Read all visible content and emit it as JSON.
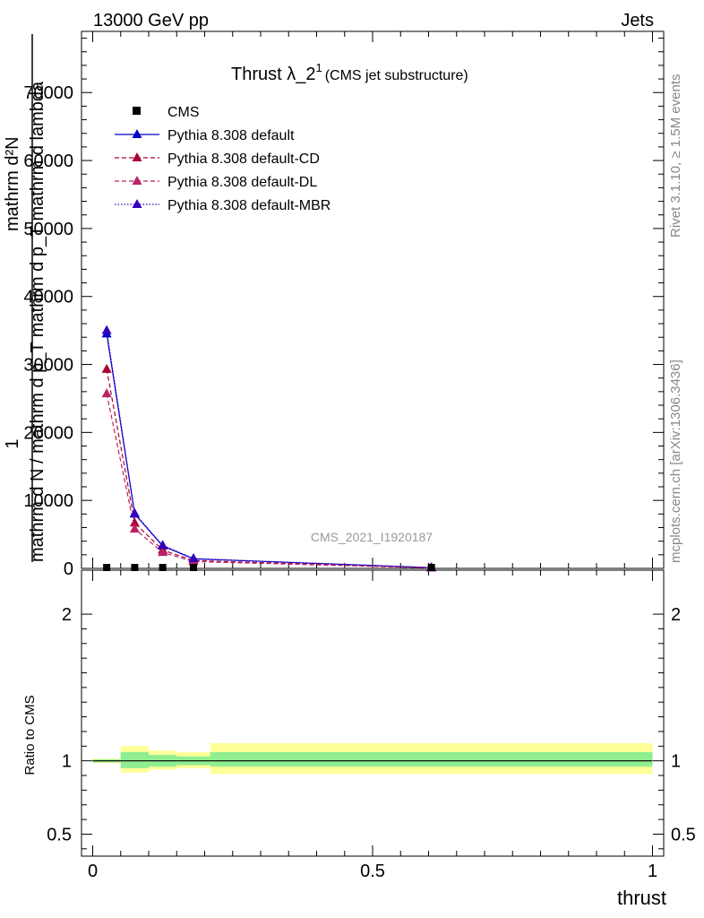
{
  "header": {
    "left": "13000 GeV pp",
    "right": "Jets"
  },
  "side_labels": {
    "rivet": "Rivet 3.1.10, ≥ 1.5M events",
    "mcplots": "mcplots.cern.ch [arXiv:1306.3436]"
  },
  "chart_data": {
    "type": "line",
    "title": "Thrust λ_2",
    "title_sup": "1",
    "subtitle": "(CMS jet substructure)",
    "watermark": "CMS_2021_I1920187",
    "xlabel": "thrust",
    "ylabel_num": "mathrm d²N",
    "ylabel_den": "mathrm d N / mathrm d p_T mathrm d p_T mathrm d lambda",
    "ylabel_lead": "1",
    "ratio_ylabel": "Ratio to CMS",
    "xlim": [
      -0.02,
      1.02
    ],
    "ylim": [
      0,
      79000
    ],
    "ratio_ylim": [
      0.35,
      2.3
    ],
    "x_ticks": [
      "0",
      "0.5",
      "1"
    ],
    "y_ticks": [
      "0",
      "10000",
      "20000",
      "30000",
      "40000",
      "50000",
      "60000",
      "70000"
    ],
    "ratio_ticks": [
      "0.5",
      "1",
      "2"
    ],
    "bins": [
      0.0,
      0.05,
      0.1,
      0.15,
      0.21,
      1.0
    ],
    "x": [
      0.025,
      0.075,
      0.125,
      0.18,
      0.605
    ],
    "series": [
      {
        "name": "CMS",
        "style": "data",
        "color": "#000000",
        "values": [
          0,
          0,
          0,
          0,
          0
        ]
      },
      {
        "name": "Pythia 8.308 default",
        "style": "solid",
        "color": "#0000cc",
        "values": [
          34500,
          8000,
          3300,
          1400,
          100
        ]
      },
      {
        "name": "Pythia 8.308 default-CD",
        "style": "dashed",
        "color": "#aa0033",
        "values": [
          29300,
          6700,
          2700,
          1150,
          80
        ]
      },
      {
        "name": "Pythia 8.308 default-DL",
        "style": "dashed",
        "color": "#bb2266",
        "values": [
          25700,
          5800,
          2350,
          1000,
          70
        ]
      },
      {
        "name": "Pythia 8.308 default-MBR",
        "style": "dotted",
        "color": "#3300bb",
        "values": [
          35000,
          8100,
          3400,
          1450,
          110
        ]
      }
    ],
    "ratio_bands": [
      {
        "x0": 0.0,
        "x1": 0.05,
        "inner": [
          0.99,
          1.01
        ],
        "outer": [
          0.985,
          1.015
        ]
      },
      {
        "x0": 0.05,
        "x1": 0.1,
        "inner": [
          0.95,
          1.06
        ],
        "outer": [
          0.92,
          1.1
        ]
      },
      {
        "x0": 0.1,
        "x1": 0.15,
        "inner": [
          0.96,
          1.04
        ],
        "outer": [
          0.94,
          1.07
        ]
      },
      {
        "x0": 0.15,
        "x1": 0.21,
        "inner": [
          0.97,
          1.03
        ],
        "outer": [
          0.95,
          1.06
        ]
      },
      {
        "x0": 0.21,
        "x1": 1.0,
        "inner": [
          0.96,
          1.06
        ],
        "outer": [
          0.91,
          1.12
        ]
      }
    ],
    "band_colors": {
      "inner": "#90ee90",
      "outer": "#ffff99"
    }
  }
}
